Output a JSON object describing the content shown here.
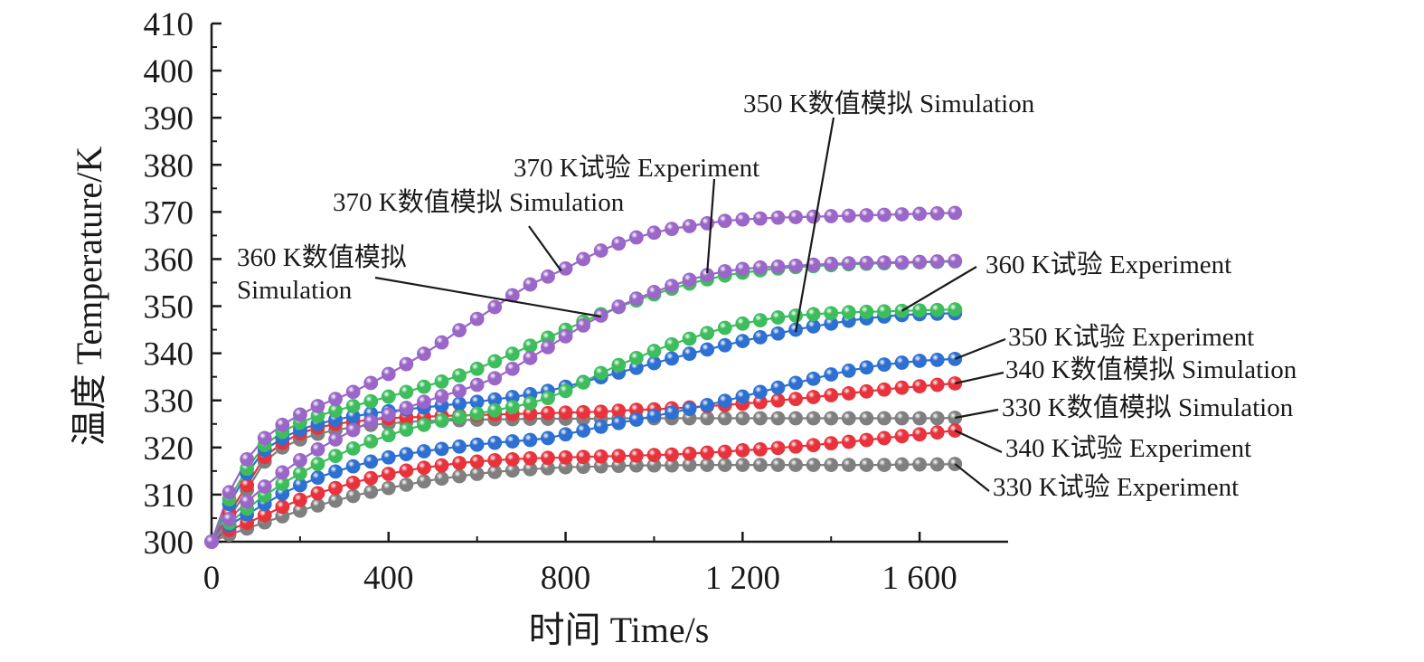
{
  "chart_data": {
    "type": "line",
    "xlabel": "时间 Time/s",
    "ylabel": "温度 Temperature/K",
    "xlim": [
      0,
      1800
    ],
    "ylim": [
      300,
      410
    ],
    "x_ticks": [
      0,
      400,
      800,
      1200,
      1600
    ],
    "x_tick_labels": [
      "0",
      "400",
      "800",
      "1 200",
      "1 600"
    ],
    "y_ticks": [
      300,
      310,
      320,
      330,
      340,
      350,
      360,
      370,
      380,
      390,
      400,
      410
    ],
    "y_tick_labels": [
      "300",
      "310",
      "320",
      "330",
      "340",
      "350",
      "360",
      "370",
      "380",
      "390",
      "400",
      "410"
    ],
    "grid": false,
    "x": [
      0,
      40,
      80,
      120,
      160,
      200,
      240,
      280,
      320,
      360,
      400,
      440,
      480,
      520,
      560,
      600,
      640,
      680,
      720,
      760,
      800,
      840,
      880,
      920,
      960,
      1000,
      1040,
      1080,
      1120,
      1160,
      1200,
      1240,
      1280,
      1320,
      1360,
      1400,
      1440,
      1480,
      1520,
      1560,
      1600,
      1640,
      1680
    ],
    "series": [
      {
        "name": "330 K试验 Experiment",
        "color": "#7f7f7f",
        "values": [
          300.0,
          301.5,
          302.8,
          304.1,
          305.4,
          306.6,
          307.7,
          308.7,
          309.7,
          310.6,
          311.4,
          312.1,
          312.8,
          313.4,
          313.9,
          314.4,
          314.8,
          315.1,
          315.4,
          315.6,
          315.8,
          315.9,
          316.0,
          316.1,
          316.2,
          316.2,
          316.2,
          316.3,
          316.3,
          316.3,
          316.3,
          316.3,
          316.3,
          316.3,
          316.3,
          316.3,
          316.3,
          316.3,
          316.3,
          316.4,
          316.4,
          316.4,
          316.5
        ]
      },
      {
        "name": "330 K数值模拟 Simulation",
        "color": "#7f7f7f",
        "values": [
          300.0,
          305.0,
          311.0,
          317.0,
          320.0,
          321.7,
          322.9,
          323.7,
          324.3,
          324.8,
          325.1,
          325.4,
          325.6,
          325.7,
          325.8,
          325.9,
          326.0,
          326.0,
          326.1,
          326.1,
          326.1,
          326.1,
          326.1,
          326.2,
          326.2,
          326.2,
          326.2,
          326.2,
          326.2,
          326.2,
          326.2,
          326.2,
          326.2,
          326.2,
          326.2,
          326.2,
          326.2,
          326.2,
          326.2,
          326.2,
          326.2,
          326.2,
          326.3
        ]
      },
      {
        "name": "340 K试验 Experiment",
        "color": "#e8333d",
        "values": [
          300.0,
          302.5,
          304.0,
          305.6,
          307.4,
          308.9,
          310.3,
          311.4,
          312.5,
          313.5,
          314.4,
          315.1,
          315.7,
          316.2,
          316.7,
          317.0,
          317.3,
          317.5,
          317.7,
          317.8,
          317.9,
          318.0,
          318.1,
          318.2,
          318.3,
          318.4,
          318.5,
          318.7,
          318.9,
          319.1,
          319.4,
          319.6,
          319.9,
          320.2,
          320.5,
          320.9,
          321.2,
          321.6,
          322.0,
          322.4,
          322.8,
          323.2,
          323.6
        ]
      },
      {
        "name": "340 K数值模拟 Simulation",
        "color": "#e8333d",
        "values": [
          300.0,
          306.0,
          312.0,
          318.0,
          321.0,
          323.0,
          324.2,
          325.0,
          325.5,
          325.9,
          326.2,
          326.4,
          326.5,
          326.7,
          326.8,
          326.9,
          327.0,
          327.1,
          327.2,
          327.3,
          327.4,
          327.5,
          327.6,
          327.8,
          328.0,
          328.1,
          328.3,
          328.5,
          328.8,
          329.0,
          329.3,
          329.6,
          330.0,
          330.3,
          330.7,
          331.1,
          331.5,
          331.9,
          332.3,
          332.7,
          333.0,
          333.3,
          333.6
        ]
      },
      {
        "name": "350 K试验 Experiment",
        "color": "#2e6fd2",
        "values": [
          300.0,
          303.5,
          305.8,
          308.0,
          310.2,
          312.0,
          313.6,
          314.9,
          316.0,
          317.0,
          317.9,
          318.6,
          319.2,
          319.7,
          320.2,
          320.6,
          321.0,
          321.3,
          321.6,
          322.0,
          322.8,
          323.6,
          324.4,
          325.2,
          325.9,
          326.7,
          327.4,
          328.2,
          329.0,
          329.9,
          330.8,
          331.8,
          332.7,
          333.7,
          334.6,
          335.5,
          336.3,
          337.0,
          337.6,
          338.0,
          338.4,
          338.6,
          338.8
        ]
      },
      {
        "name": "350 K数值模拟 Simulation",
        "color": "#2e6fd2",
        "values": [
          300.0,
          308.0,
          314.5,
          319.5,
          322.0,
          323.8,
          325.0,
          325.9,
          326.6,
          327.2,
          327.7,
          328.1,
          328.5,
          328.9,
          329.3,
          329.7,
          330.2,
          330.7,
          331.3,
          332.0,
          332.9,
          333.9,
          334.9,
          335.9,
          336.9,
          337.9,
          338.9,
          339.9,
          340.8,
          341.7,
          342.6,
          343.4,
          344.2,
          345.0,
          345.7,
          346.3,
          346.9,
          347.4,
          347.8,
          348.1,
          348.3,
          348.4,
          348.5
        ]
      },
      {
        "name": "360 K试验 Experiment",
        "color": "#3dbd5c",
        "values": [
          300.0,
          304.0,
          307.0,
          309.8,
          312.3,
          314.5,
          316.5,
          318.2,
          319.8,
          321.3,
          322.6,
          323.8,
          324.8,
          325.7,
          326.5,
          327.2,
          327.9,
          328.6,
          329.4,
          330.5,
          332.0,
          333.8,
          335.8,
          337.5,
          339.0,
          340.5,
          341.9,
          343.1,
          344.3,
          345.4,
          346.3,
          347.0,
          347.6,
          348.0,
          348.3,
          348.5,
          348.7,
          348.8,
          348.9,
          349.0,
          349.1,
          349.2,
          349.3
        ]
      },
      {
        "name": "360 K数值模拟 Simulation",
        "color": "#3dbd5c",
        "values": [
          300.0,
          309.0,
          315.5,
          320.5,
          323.3,
          325.3,
          326.7,
          327.8,
          328.8,
          329.8,
          330.8,
          331.8,
          332.9,
          334.0,
          335.3,
          336.7,
          338.3,
          339.9,
          341.6,
          343.3,
          345.0,
          346.7,
          348.3,
          349.8,
          351.2,
          352.5,
          353.7,
          354.8,
          355.7,
          356.5,
          357.1,
          357.6,
          358.0,
          358.3,
          358.5,
          358.7,
          358.9,
          359.0,
          359.1,
          359.2,
          359.3,
          359.4,
          359.5
        ]
      },
      {
        "name": "370 K试验 Experiment",
        "color": "#9a66c8",
        "values": [
          300.0,
          304.8,
          308.5,
          311.7,
          314.7,
          317.3,
          319.6,
          321.7,
          323.7,
          325.5,
          327.0,
          328.4,
          329.7,
          330.9,
          332.0,
          333.3,
          334.7,
          336.7,
          339.0,
          341.3,
          343.6,
          345.9,
          348.0,
          349.9,
          351.6,
          353.0,
          354.3,
          355.6,
          356.6,
          357.4,
          357.9,
          358.2,
          358.4,
          358.6,
          358.8,
          359.0,
          359.1,
          359.2,
          359.3,
          359.3,
          359.4,
          359.5,
          359.6
        ]
      },
      {
        "name": "370 K数值模拟 Simulation",
        "color": "#9a66c8",
        "values": [
          300.0,
          310.5,
          317.5,
          322.0,
          324.8,
          327.0,
          328.8,
          330.3,
          331.8,
          333.7,
          335.6,
          337.7,
          339.9,
          342.3,
          344.9,
          347.3,
          349.8,
          352.3,
          354.6,
          356.3,
          358.0,
          360.0,
          361.8,
          363.3,
          364.6,
          365.6,
          366.4,
          367.0,
          367.6,
          368.1,
          368.4,
          368.6,
          368.8,
          368.9,
          369.0,
          369.1,
          369.2,
          369.3,
          369.4,
          369.5,
          369.6,
          369.7,
          369.8
        ]
      }
    ],
    "annotations": [
      {
        "text": "350 K数值模拟 Simulation",
        "target_x": 1320,
        "target_y": 344.5
      },
      {
        "text": "370 K试验 Experiment",
        "target_x": 1120,
        "target_y": 357.0
      },
      {
        "text": "370 K数值模拟 Simulation",
        "target_x": 790,
        "target_y": 357.5
      },
      {
        "text": "360 K数值模拟\nSimulation",
        "target_x": 880,
        "target_y": 347.8
      },
      {
        "text": "360 K试验 Experiment",
        "target_x": 1560,
        "target_y": 349.0
      },
      {
        "text": "350 K试验 Experiment",
        "target_x": 1680,
        "target_y": 338.8
      },
      {
        "text": "340 K数值模拟 Simulation",
        "target_x": 1680,
        "target_y": 333.6
      },
      {
        "text": "330 K数值模拟 Simulation",
        "target_x": 1680,
        "target_y": 326.3
      },
      {
        "text": "340 K试验 Experiment",
        "target_x": 1680,
        "target_y": 323.6
      },
      {
        "text": "330 K试验 Experiment",
        "target_x": 1680,
        "target_y": 316.5
      }
    ]
  }
}
